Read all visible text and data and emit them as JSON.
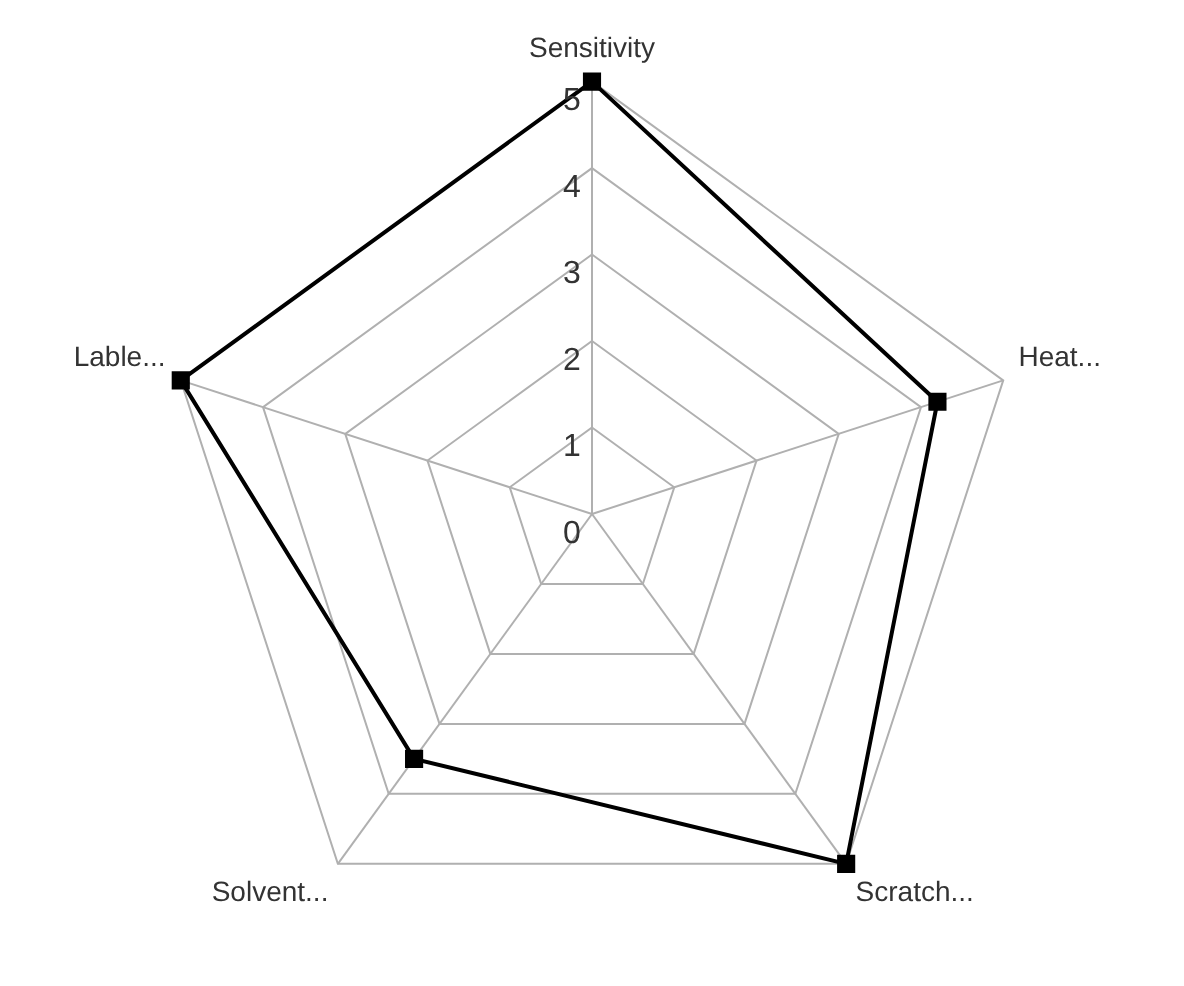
{
  "chart_data": {
    "type": "radar",
    "categories": [
      "Sensitivity",
      "Heat...",
      "Scratch...",
      "Solvent...",
      "Lable..."
    ],
    "series": [
      {
        "color": "#000000",
        "values": [
          5,
          4.2,
          5,
          3.5,
          5
        ]
      }
    ],
    "ylim": [
      0,
      5
    ],
    "yticks": [
      0,
      1,
      2,
      3,
      4,
      5
    ],
    "grid": true,
    "marker": "square",
    "line_style": "solid"
  }
}
